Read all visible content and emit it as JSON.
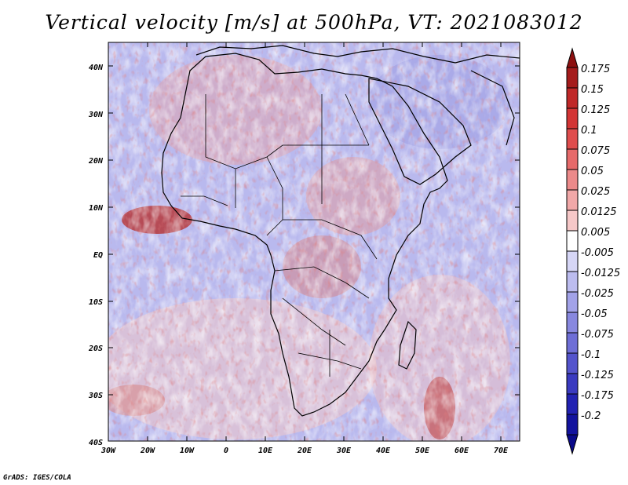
{
  "title": "Vertical velocity [m/s] at 500hPa, VT: 2021083012",
  "credit": "GrADS: IGES/COLA",
  "lat_labels": [
    "40N",
    "30N",
    "20N",
    "10N",
    "EQ",
    "10S",
    "20S",
    "30S",
    "40S"
  ],
  "lon_labels": [
    "30W",
    "20W",
    "10W",
    "0",
    "10E",
    "20E",
    "30E",
    "40E",
    "50E",
    "60E",
    "70E"
  ],
  "colorbar": {
    "labels": [
      "0.175",
      "0.15",
      "0.125",
      "0.1",
      "0.075",
      "0.05",
      "0.025",
      "0.0125",
      "0.005",
      "-0.005",
      "-0.0125",
      "-0.025",
      "-0.05",
      "-0.075",
      "-0.1",
      "-0.125",
      "-0.175",
      "-0.2"
    ],
    "colors": [
      "#a51c1c",
      "#c02828",
      "#d33535",
      "#df4d4d",
      "#e66a6a",
      "#ec8a8a",
      "#f1a8a8",
      "#f6c8c8",
      "#ffffff",
      "#d6d6f6",
      "#bcbcef",
      "#a2a2e8",
      "#8888df",
      "#6e6ed6",
      "#5454cc",
      "#3a3ac0",
      "#2222b2",
      "#13139e"
    ],
    "top_triangle_color": "#8c1010",
    "bottom_triangle_color": "#0a0a8a"
  },
  "colors": {
    "positive_accent": "#c02828",
    "negative_accent": "#5454cc",
    "coastline": "#000000"
  }
}
